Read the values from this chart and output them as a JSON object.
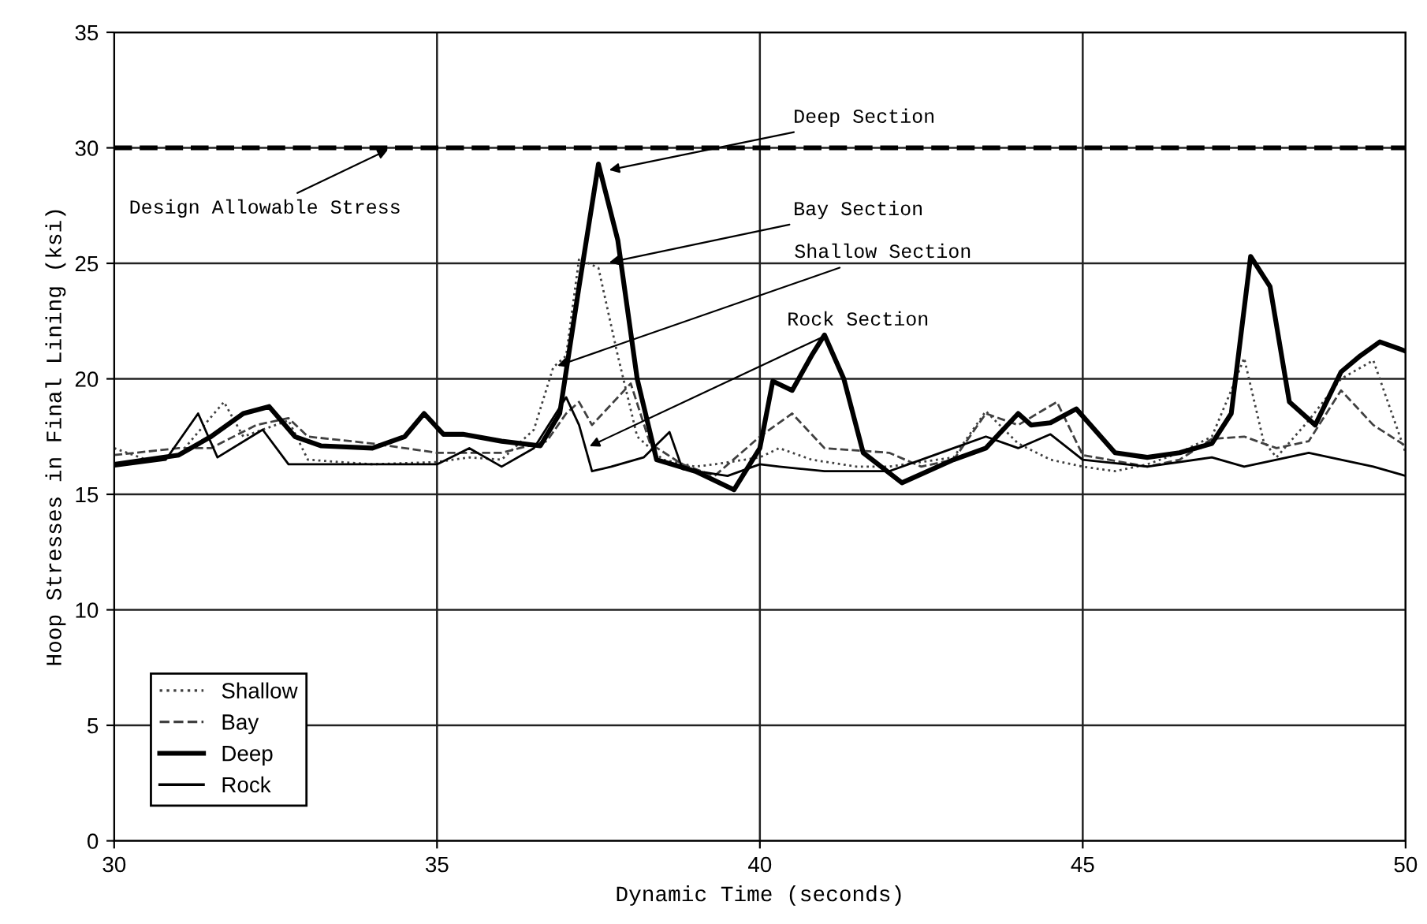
{
  "chart_data": {
    "type": "line",
    "xlabel": "Dynamic Time (seconds)",
    "ylabel": "Hoop Stresses in Final Lining (ksi)",
    "xlim": [
      30,
      50
    ],
    "xticks": [
      30,
      35,
      40,
      45,
      50
    ],
    "ylim": [
      0,
      35
    ],
    "yticks": [
      0,
      5,
      10,
      15,
      20,
      25,
      30,
      35
    ],
    "grid": true,
    "legend": "bottom left",
    "ref_lines": [
      {
        "axis": "y",
        "value": 30,
        "label": "Design Allowable Stress",
        "color": "#000000",
        "line_style": "dashed"
      }
    ],
    "annotations": [
      {
        "text": "Deep Section",
        "x": 37.6,
        "y": 29.0
      },
      {
        "text": "Bay Section",
        "x": 37.6,
        "y": 25.0
      },
      {
        "text": "Shallow Section",
        "x": 36.8,
        "y": 20.5
      },
      {
        "text": "Rock Section",
        "x": 37.3,
        "y": 17.0
      }
    ],
    "series": [
      {
        "name": "Shallow",
        "color": "#404040",
        "line_style": "dotted",
        "x": [
          30,
          30.5,
          31,
          31.7,
          32,
          32.7,
          33,
          34,
          35,
          35.5,
          36,
          36.5,
          36.8,
          37,
          37.2,
          37.5,
          37.8,
          38.1,
          38.5,
          39,
          39.3,
          40,
          40.3,
          40.8,
          41.5,
          42,
          43,
          43.5,
          44,
          44.5,
          45,
          45.5,
          46,
          46.5,
          47,
          47.3,
          47.5,
          47.8,
          48,
          48.5,
          49,
          49.5,
          50
        ],
        "values": [
          17.0,
          16.5,
          16.7,
          19.0,
          17.5,
          18.2,
          16.5,
          16.3,
          16.4,
          16.6,
          16.5,
          17.8,
          20.5,
          21.0,
          25.2,
          24.8,
          21.0,
          17.5,
          16.5,
          16.2,
          16.3,
          16.6,
          17.0,
          16.5,
          16.2,
          16.2,
          16.6,
          18.6,
          17.2,
          16.5,
          16.2,
          16.0,
          16.3,
          16.8,
          17.5,
          19.5,
          20.9,
          17.3,
          16.6,
          18.2,
          20.0,
          20.8,
          16.8
        ]
      },
      {
        "name": "Bay",
        "color": "#404040",
        "line_style": "dashed",
        "x": [
          30,
          31,
          31.5,
          32.2,
          32.7,
          33,
          34,
          35,
          36,
          36.7,
          37,
          37.2,
          37.4,
          38,
          38.3,
          38.8,
          39.3,
          40,
          40.5,
          41,
          42,
          42.5,
          43,
          43.5,
          44,
          44.6,
          45,
          46,
          46.5,
          47,
          47.5,
          48,
          48.5,
          49,
          49.5,
          50
        ],
        "values": [
          16.7,
          17.0,
          17.0,
          18.0,
          18.3,
          17.5,
          17.2,
          16.8,
          16.8,
          17.3,
          18.5,
          19.0,
          18.0,
          19.8,
          17.2,
          16.3,
          15.8,
          17.5,
          18.5,
          17.0,
          16.8,
          16.2,
          16.5,
          18.5,
          18.0,
          19.0,
          16.7,
          16.2,
          16.5,
          17.4,
          17.5,
          17.0,
          17.3,
          19.5,
          18.0,
          17.1
        ]
      },
      {
        "name": "Deep",
        "color": "#000000",
        "line_style": "solid",
        "x": [
          30,
          31,
          31.5,
          32,
          32.4,
          32.8,
          33.2,
          34,
          34.5,
          34.8,
          35.1,
          35.4,
          36,
          36.6,
          36.9,
          37.2,
          37.5,
          37.8,
          38.1,
          38.4,
          39,
          39.6,
          40,
          40.2,
          40.5,
          40.8,
          41,
          41.3,
          41.6,
          42.2,
          43,
          43.5,
          44,
          44.2,
          44.5,
          44.9,
          45.5,
          46,
          46.5,
          47,
          47.3,
          47.6,
          47.9,
          48.2,
          48.6,
          49,
          49.3,
          49.6,
          50
        ],
        "values": [
          16.3,
          16.7,
          17.5,
          18.5,
          18.8,
          17.5,
          17.1,
          17.0,
          17.5,
          18.5,
          17.6,
          17.6,
          17.3,
          17.1,
          18.5,
          24.0,
          29.3,
          26.0,
          20.0,
          16.5,
          16.0,
          15.2,
          17.0,
          19.9,
          19.5,
          21.0,
          21.9,
          20.0,
          16.8,
          15.5,
          16.5,
          17.0,
          18.5,
          18.0,
          18.1,
          18.7,
          16.8,
          16.6,
          16.8,
          17.2,
          18.5,
          25.3,
          24.0,
          19.0,
          18.0,
          20.3,
          21.0,
          21.6,
          21.2
        ]
      },
      {
        "name": "Rock",
        "color": "#000000",
        "line_style": "solid",
        "x": [
          30,
          30.8,
          31.3,
          31.6,
          32.3,
          32.7,
          33.2,
          34,
          35,
          35.5,
          36,
          36.5,
          37.0,
          37.2,
          37.4,
          37.7,
          38.2,
          38.6,
          38.8,
          39.5,
          40,
          40.3,
          41,
          42,
          42.5,
          43,
          43.5,
          44,
          44.5,
          45,
          46,
          47,
          47.5,
          48,
          48.5,
          49,
          49.5,
          50
        ],
        "values": [
          16.2,
          16.5,
          18.5,
          16.6,
          17.8,
          16.3,
          16.3,
          16.3,
          16.3,
          17.0,
          16.2,
          17.0,
          19.2,
          18.0,
          16.0,
          16.2,
          16.6,
          17.7,
          16.1,
          15.8,
          16.3,
          16.2,
          16.0,
          16.0,
          16.5,
          17.0,
          17.5,
          17.0,
          17.6,
          16.5,
          16.2,
          16.6,
          16.2,
          16.5,
          16.8,
          16.5,
          16.2,
          15.8
        ]
      }
    ]
  }
}
